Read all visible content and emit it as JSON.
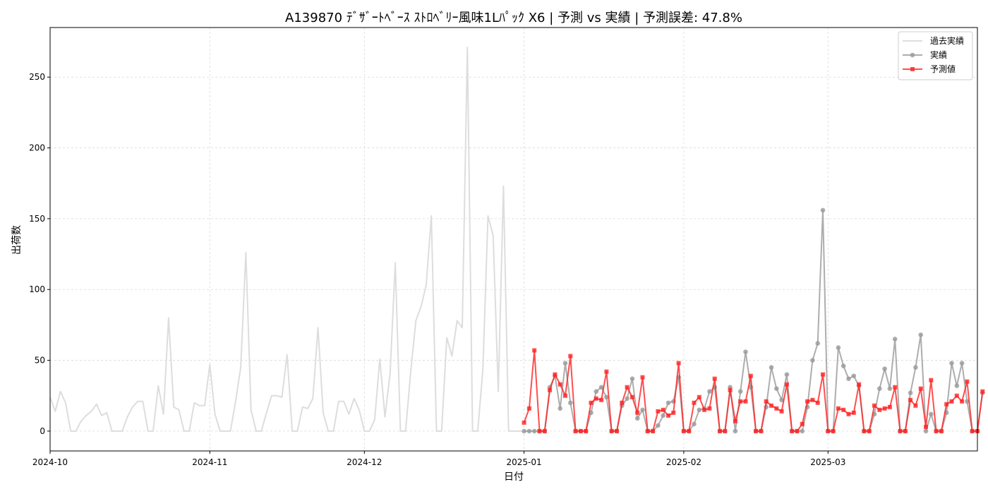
{
  "chart_data": {
    "type": "line",
    "title": "A139870 ﾃﾞｻﾞｰﾄﾍﾞｰｽ ｽﾄﾛﾍﾞﾘｰ風味1Lﾊﾟｯｸ X6 | 予測 vs 実績 | 予測誤差: 47.8%",
    "xlabel": "日付",
    "ylabel": "出荷数",
    "x_start": "2024-10-01",
    "x_end": "2025-03-30",
    "ylim": [
      -14,
      285
    ],
    "yticks": [
      0,
      50,
      100,
      150,
      200,
      250
    ],
    "xticks": [
      {
        "date": "2024-10-01",
        "label": "2024-10"
      },
      {
        "date": "2024-11-01",
        "label": "2024-11"
      },
      {
        "date": "2024-12-01",
        "label": "2024-12"
      },
      {
        "date": "2025-01-01",
        "label": "2025-01"
      },
      {
        "date": "2025-02-01",
        "label": "2025-02"
      },
      {
        "date": "2025-03-01",
        "label": "2025-03"
      }
    ],
    "grid": true,
    "legend_position": "upper right",
    "series": [
      {
        "name": "過去実績",
        "color": "#dddddd",
        "marker": "none",
        "start_date": "2024-10-01",
        "values": [
          24,
          14,
          28,
          20,
          0,
          0,
          7,
          11,
          14,
          19,
          11,
          13,
          0,
          0,
          0,
          10,
          17,
          21,
          21,
          0,
          0,
          32,
          12,
          80,
          17,
          15,
          0,
          0,
          20,
          18,
          18,
          47,
          12,
          0,
          0,
          0,
          21,
          45,
          126,
          15,
          0,
          0,
          13,
          25,
          25,
          24,
          54,
          0,
          0,
          17,
          16,
          23,
          73,
          13,
          0,
          0,
          21,
          21,
          12,
          23,
          15,
          0,
          0,
          8,
          51,
          10,
          41,
          119,
          0,
          0,
          42,
          78,
          88,
          103,
          152,
          0,
          0,
          66,
          53,
          78,
          73,
          271,
          0,
          0,
          43,
          152,
          138,
          28,
          173,
          0,
          0,
          0,
          0
        ]
      },
      {
        "name": "実績",
        "color": "#999999",
        "marker": "circle",
        "start_date": "2025-01-01",
        "values": [
          0,
          0,
          0,
          0,
          0,
          31,
          39,
          16,
          48,
          20,
          0,
          0,
          0,
          13,
          28,
          31,
          24,
          0,
          0,
          18,
          23,
          37,
          9,
          15,
          0,
          0,
          4,
          11,
          20,
          21,
          38,
          0,
          0,
          5,
          15,
          16,
          28,
          31,
          0,
          0,
          31,
          0,
          28,
          56,
          31,
          0,
          0,
          17,
          45,
          30,
          22,
          40,
          0,
          0,
          0,
          17,
          50,
          62,
          156,
          0,
          0,
          59,
          46,
          37,
          39,
          32,
          0,
          0,
          12,
          30,
          44,
          30,
          65,
          0,
          0,
          27,
          45,
          68,
          0,
          12,
          0,
          0,
          13,
          48,
          32,
          48,
          21,
          0,
          0,
          27
        ]
      },
      {
        "name": "予測値",
        "color": "#ff2222",
        "marker": "square",
        "start_date": "2025-01-01",
        "values": [
          6,
          16,
          57,
          0,
          0,
          29,
          40,
          33,
          25,
          53,
          0,
          0,
          0,
          20,
          23,
          22,
          42,
          0,
          0,
          20,
          31,
          24,
          13,
          38,
          0,
          0,
          14,
          15,
          11,
          13,
          48,
          0,
          0,
          20,
          24,
          15,
          16,
          37,
          0,
          0,
          29,
          7,
          21,
          21,
          39,
          0,
          0,
          21,
          18,
          16,
          14,
          33,
          0,
          0,
          5,
          21,
          22,
          20,
          40,
          0,
          0,
          16,
          15,
          12,
          13,
          33,
          0,
          0,
          18,
          15,
          16,
          17,
          31,
          0,
          0,
          22,
          18,
          30,
          3,
          36,
          0,
          0,
          19,
          21,
          25,
          21,
          35,
          0,
          0,
          28
        ]
      }
    ]
  }
}
